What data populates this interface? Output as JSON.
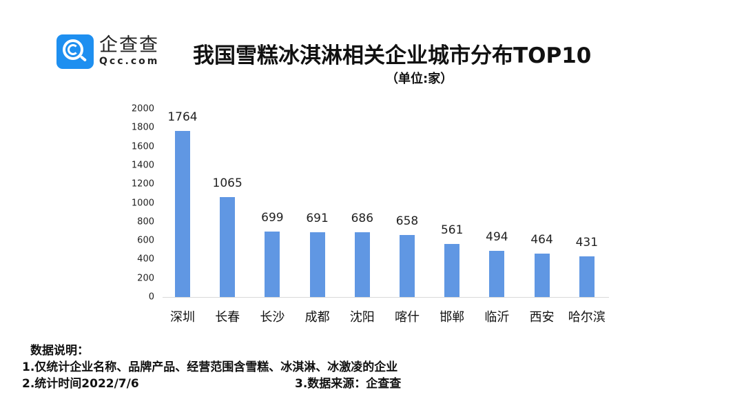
{
  "logo": {
    "cn": "企查查",
    "en": "Qcc.com"
  },
  "header": {
    "title": "我国雪糕冰淇淋相关企业城市分布TOP10",
    "subtitle": "（单位:家）"
  },
  "chart_data": {
    "type": "bar",
    "title": "我国雪糕冰淇淋相关企业城市分布TOP10",
    "subtitle": "（单位:家）",
    "categories": [
      "深圳",
      "长春",
      "长沙",
      "成都",
      "沈阳",
      "喀什",
      "邯郸",
      "临沂",
      "西安",
      "哈尔滨"
    ],
    "values": [
      1764,
      1065,
      699,
      691,
      686,
      658,
      561,
      494,
      464,
      431
    ],
    "xlabel": "",
    "ylabel": "",
    "ylim": [
      0,
      2000
    ],
    "yticks": [
      0,
      200,
      400,
      600,
      800,
      1000,
      1200,
      1400,
      1600,
      1800,
      2000
    ],
    "grid": false,
    "legend": null,
    "data_labels": true,
    "bar_color": "#6097e3"
  },
  "notes": {
    "heading": "数据说明：",
    "line1": "1.仅统计企业名称、品牌产品、经营范围含雪糕、冰淇淋、冰激凌的企业",
    "line2": "2.统计时间2022/7/6",
    "line3": "3.数据来源：企查查"
  }
}
